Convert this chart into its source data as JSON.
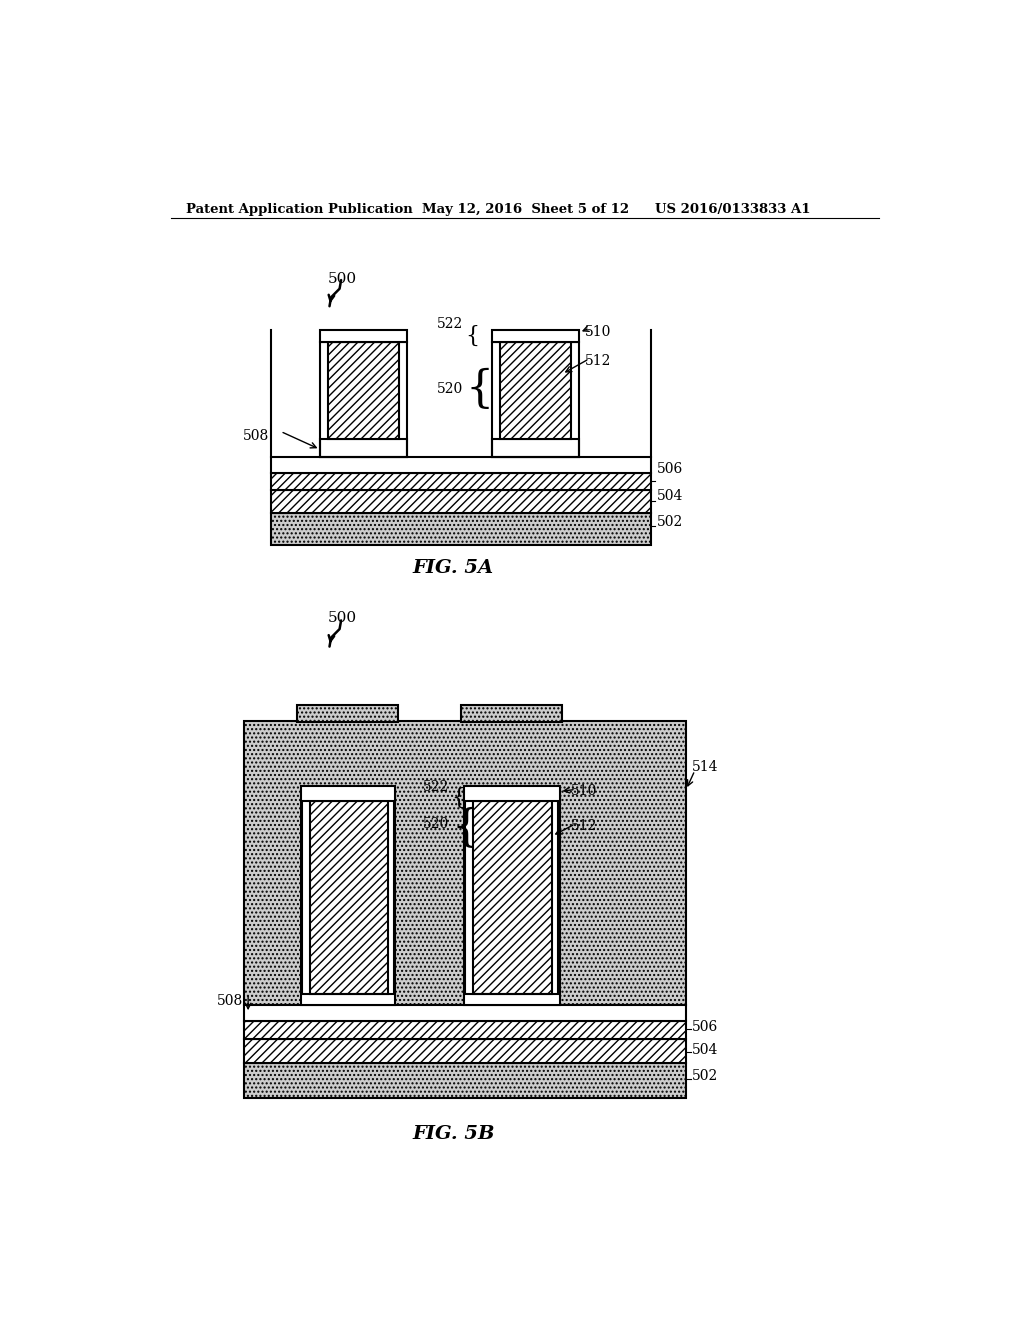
{
  "header_left": "Patent Application Publication",
  "header_mid": "May 12, 2016  Sheet 5 of 12",
  "header_right": "US 2016/0133833 A1",
  "fig_a_label": "FIG. 5A",
  "fig_b_label": "FIG. 5B",
  "label_500": "500",
  "label_502": "502",
  "label_504": "504",
  "label_506": "506",
  "label_508": "508",
  "label_510": "510",
  "label_512": "512",
  "label_514": "514",
  "label_520": "520",
  "label_522": "522",
  "bg_color": "#ffffff",
  "line_color": "#000000"
}
